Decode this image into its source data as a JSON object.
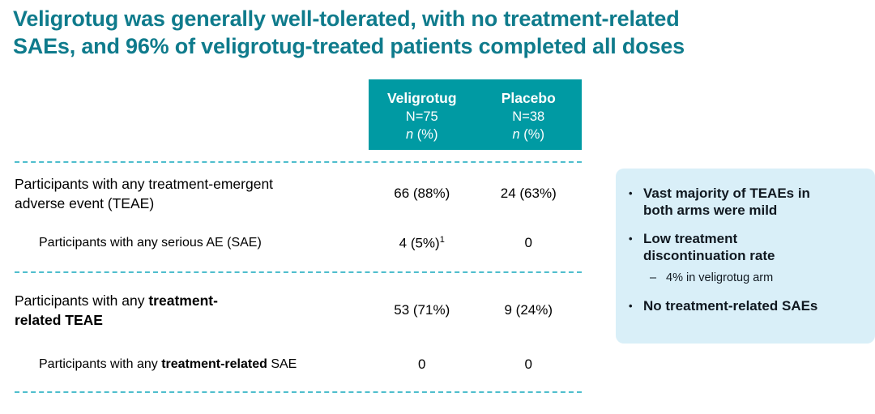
{
  "title": {
    "line1": "Veligrotug was generally well-tolerated, with no treatment-related",
    "line2": "SAEs, and 96% of veligrotug-treated patients completed all doses"
  },
  "table": {
    "columns": [
      {
        "name": "Veligrotug",
        "n": "N=75",
        "unit_italic": "n",
        "unit_rest": " (%)"
      },
      {
        "name": "Placebo",
        "n": "N=38",
        "unit_italic": "n",
        "unit_rest": " (%)"
      }
    ],
    "rows": [
      {
        "indent": false,
        "label_parts": [
          {
            "t": "Participants with any treatment-emergent\nadverse event (TEAE)",
            "bold": false
          }
        ],
        "values": [
          {
            "text": "66 (88%)"
          },
          {
            "text": "24 (63%)"
          }
        ],
        "divider_after": false
      },
      {
        "indent": true,
        "label_parts": [
          {
            "t": "Participants with any serious AE (SAE)",
            "bold": false
          }
        ],
        "values": [
          {
            "text": "4 (5%)",
            "sup": "1"
          },
          {
            "text": "0"
          }
        ],
        "divider_after": true
      },
      {
        "indent": false,
        "label_parts": [
          {
            "t": "Participants with any ",
            "bold": false
          },
          {
            "t": "treatment-\nrelated TEAE",
            "bold": true
          }
        ],
        "values": [
          {
            "text": "53 (71%)"
          },
          {
            "text": "9 (24%)"
          }
        ],
        "divider_after": false
      },
      {
        "indent": true,
        "label_parts": [
          {
            "t": "Participants with any ",
            "bold": false
          },
          {
            "t": "treatment-related",
            "bold": true
          },
          {
            "t": " SAE",
            "bold": false
          }
        ],
        "values": [
          {
            "text": "0"
          },
          {
            "text": "0"
          }
        ],
        "divider_after": true
      }
    ]
  },
  "callout": {
    "bullet_char": "•",
    "dash_char": "–",
    "bullets": [
      {
        "text": "Vast majority of TEAEs in\nboth arms were mild",
        "sub": null
      },
      {
        "text": "Low treatment\ndiscontinuation rate",
        "sub": "4% in veligrotug arm"
      },
      {
        "text": "No treatment-related SAEs",
        "sub": null
      }
    ]
  },
  "colors": {
    "title_teal": "#0f7b8c",
    "header_bg": "#009aa3",
    "divider": "#4fbecd",
    "callout_bg": "#d9eff8",
    "callout_text": "#101820"
  }
}
